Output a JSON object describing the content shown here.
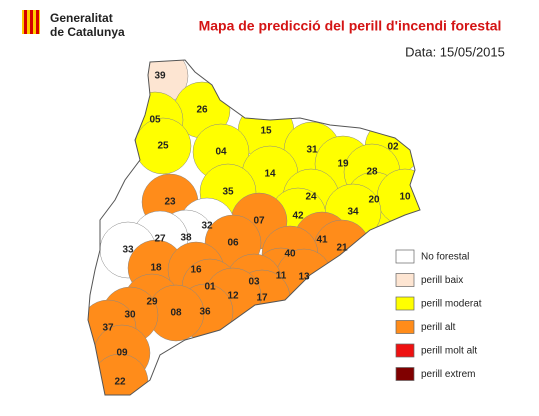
{
  "header": {
    "org_lines": [
      "Generalitat",
      "de Catalunya"
    ],
    "title": "Mapa de predicció del perill d'incendi forestal",
    "date": "Data: 15/05/2015"
  },
  "legend": [
    {
      "label": "No forestal",
      "color": "#ffffff"
    },
    {
      "label": "perill baix",
      "color": "#fde5d2"
    },
    {
      "label": "perill moderat",
      "color": "#ffff00"
    },
    {
      "label": "perill alt",
      "color": "#ff8c1a"
    },
    {
      "label": "perill molt alt",
      "color": "#ee1111"
    },
    {
      "label": "perill extrem",
      "color": "#800000"
    }
  ],
  "zones": [
    {
      "label": "39",
      "risk": 1
    },
    {
      "label": "26",
      "risk": 2
    },
    {
      "label": "05",
      "risk": 2
    },
    {
      "label": "15",
      "risk": 2
    },
    {
      "label": "25",
      "risk": 2
    },
    {
      "label": "04",
      "risk": 2
    },
    {
      "label": "31",
      "risk": 2
    },
    {
      "label": "02",
      "risk": 2
    },
    {
      "label": "19",
      "risk": 2
    },
    {
      "label": "28",
      "risk": 2
    },
    {
      "label": "14",
      "risk": 2
    },
    {
      "label": "35",
      "risk": 2
    },
    {
      "label": "23",
      "risk": 3
    },
    {
      "label": "24",
      "risk": 2
    },
    {
      "label": "20",
      "risk": 2
    },
    {
      "label": "10",
      "risk": 2
    },
    {
      "label": "34",
      "risk": 2
    },
    {
      "label": "42",
      "risk": 2
    },
    {
      "label": "07",
      "risk": 3
    },
    {
      "label": "32",
      "risk": 0
    },
    {
      "label": "38",
      "risk": 0
    },
    {
      "label": "27",
      "risk": 0
    },
    {
      "label": "33",
      "risk": 0
    },
    {
      "label": "41",
      "risk": 3
    },
    {
      "label": "21",
      "risk": 3
    },
    {
      "label": "06",
      "risk": 3
    },
    {
      "label": "40",
      "risk": 3
    },
    {
      "label": "18",
      "risk": 3
    },
    {
      "label": "16",
      "risk": 3
    },
    {
      "label": "11",
      "risk": 3
    },
    {
      "label": "13",
      "risk": 3
    },
    {
      "label": "03",
      "risk": 3
    },
    {
      "label": "01",
      "risk": 3
    },
    {
      "label": "17",
      "risk": 3
    },
    {
      "label": "12",
      "risk": 3
    },
    {
      "label": "29",
      "risk": 3
    },
    {
      "label": "36",
      "risk": 3
    },
    {
      "label": "08",
      "risk": 3
    },
    {
      "label": "30",
      "risk": 3
    },
    {
      "label": "37",
      "risk": 3
    },
    {
      "label": "09",
      "risk": 3
    },
    {
      "label": "22",
      "risk": 3
    }
  ]
}
